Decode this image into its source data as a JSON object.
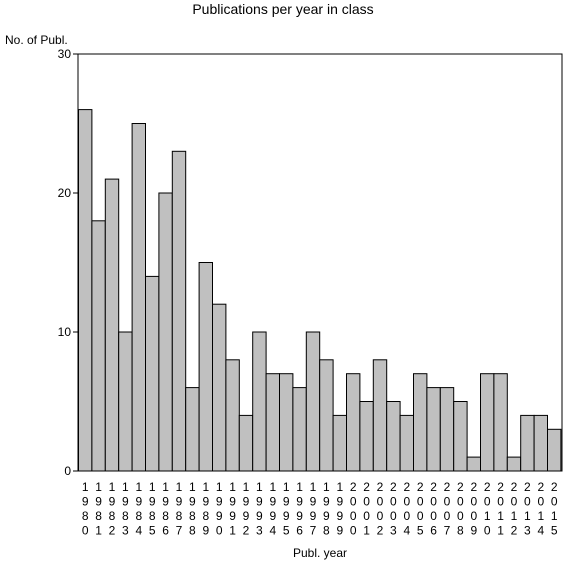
{
  "chart_data": {
    "type": "bar",
    "title": "Publications per year in class",
    "ylabel": "No. of Publ.",
    "xlabel": "Publ. year",
    "ylim": [
      0,
      30
    ],
    "yticks": [
      0,
      10,
      20,
      30
    ],
    "grid": false,
    "categories": [
      "1980",
      "1981",
      "1982",
      "1983",
      "1984",
      "1985",
      "1986",
      "1987",
      "1988",
      "1989",
      "1990",
      "1991",
      "1992",
      "1993",
      "1994",
      "1995",
      "1996",
      "1997",
      "1998",
      "1999",
      "2000",
      "2001",
      "2002",
      "2003",
      "2004",
      "2005",
      "2006",
      "2007",
      "2008",
      "2009",
      "2010",
      "2011",
      "2012",
      "2013",
      "2014",
      "2015"
    ],
    "values": [
      26,
      18,
      21,
      10,
      25,
      14,
      20,
      23,
      6,
      15,
      12,
      8,
      4,
      10,
      7,
      7,
      6,
      10,
      8,
      4,
      7,
      5,
      8,
      5,
      4,
      7,
      6,
      6,
      5,
      1,
      7,
      7,
      1,
      4,
      4,
      3
    ],
    "bar_color": "#c0c0c0",
    "edge_color": "#000000"
  }
}
